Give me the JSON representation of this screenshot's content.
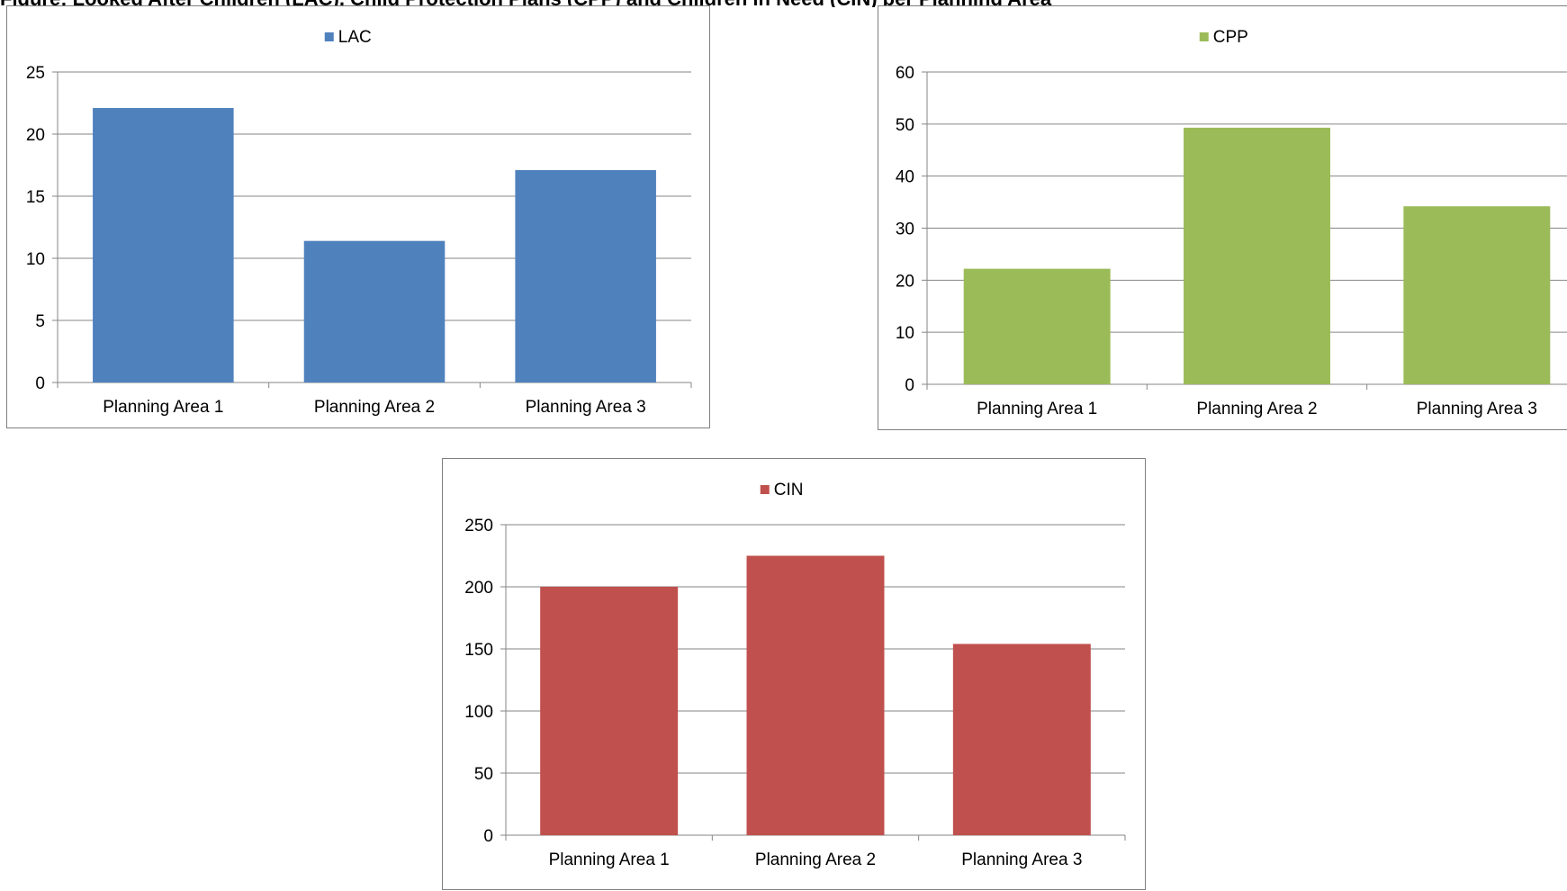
{
  "header": {
    "caption": "Figure: Looked After Children (LAC), Child Protection Plans (CPP) and Children in Need (CIN) per Planning Area"
  },
  "chart_data": [
    {
      "type": "bar",
      "categories": [
        "Planning Area 1",
        "Planning Area 2",
        "Planning Area 3"
      ],
      "series": [
        {
          "name": "LAC",
          "values": [
            22.1,
            11.4,
            17.1
          ]
        }
      ],
      "ylim": [
        0,
        25
      ],
      "yticks": [
        0,
        5,
        10,
        15,
        20,
        25
      ],
      "xlabel": "",
      "ylabel": "",
      "grid": true,
      "legend": "top-center",
      "color": "#4f81bd"
    },
    {
      "type": "bar",
      "categories": [
        "Planning Area 1",
        "Planning Area 2",
        "Planning Area 3"
      ],
      "series": [
        {
          "name": "CPP",
          "values": [
            22.2,
            49.3,
            34.2
          ]
        }
      ],
      "ylim": [
        0,
        60
      ],
      "yticks": [
        0,
        10,
        20,
        30,
        40,
        50,
        60
      ],
      "xlabel": "",
      "ylabel": "",
      "grid": true,
      "legend": "top-center",
      "color": "#9bbb59"
    },
    {
      "type": "bar",
      "categories": [
        "Planning Area 1",
        "Planning Area 2",
        "Planning Area 3"
      ],
      "series": [
        {
          "name": "CIN",
          "values": [
            200,
            225,
            154
          ]
        }
      ],
      "ylim": [
        0,
        250
      ],
      "yticks": [
        0,
        50,
        100,
        150,
        200,
        250
      ],
      "xlabel": "",
      "ylabel": "",
      "grid": true,
      "legend": "top-center",
      "color": "#c0504d"
    }
  ],
  "colors": {
    "gridline": "#868686",
    "axis": "#868686",
    "text": "#000000",
    "panel_border": "#7f7f7f"
  }
}
